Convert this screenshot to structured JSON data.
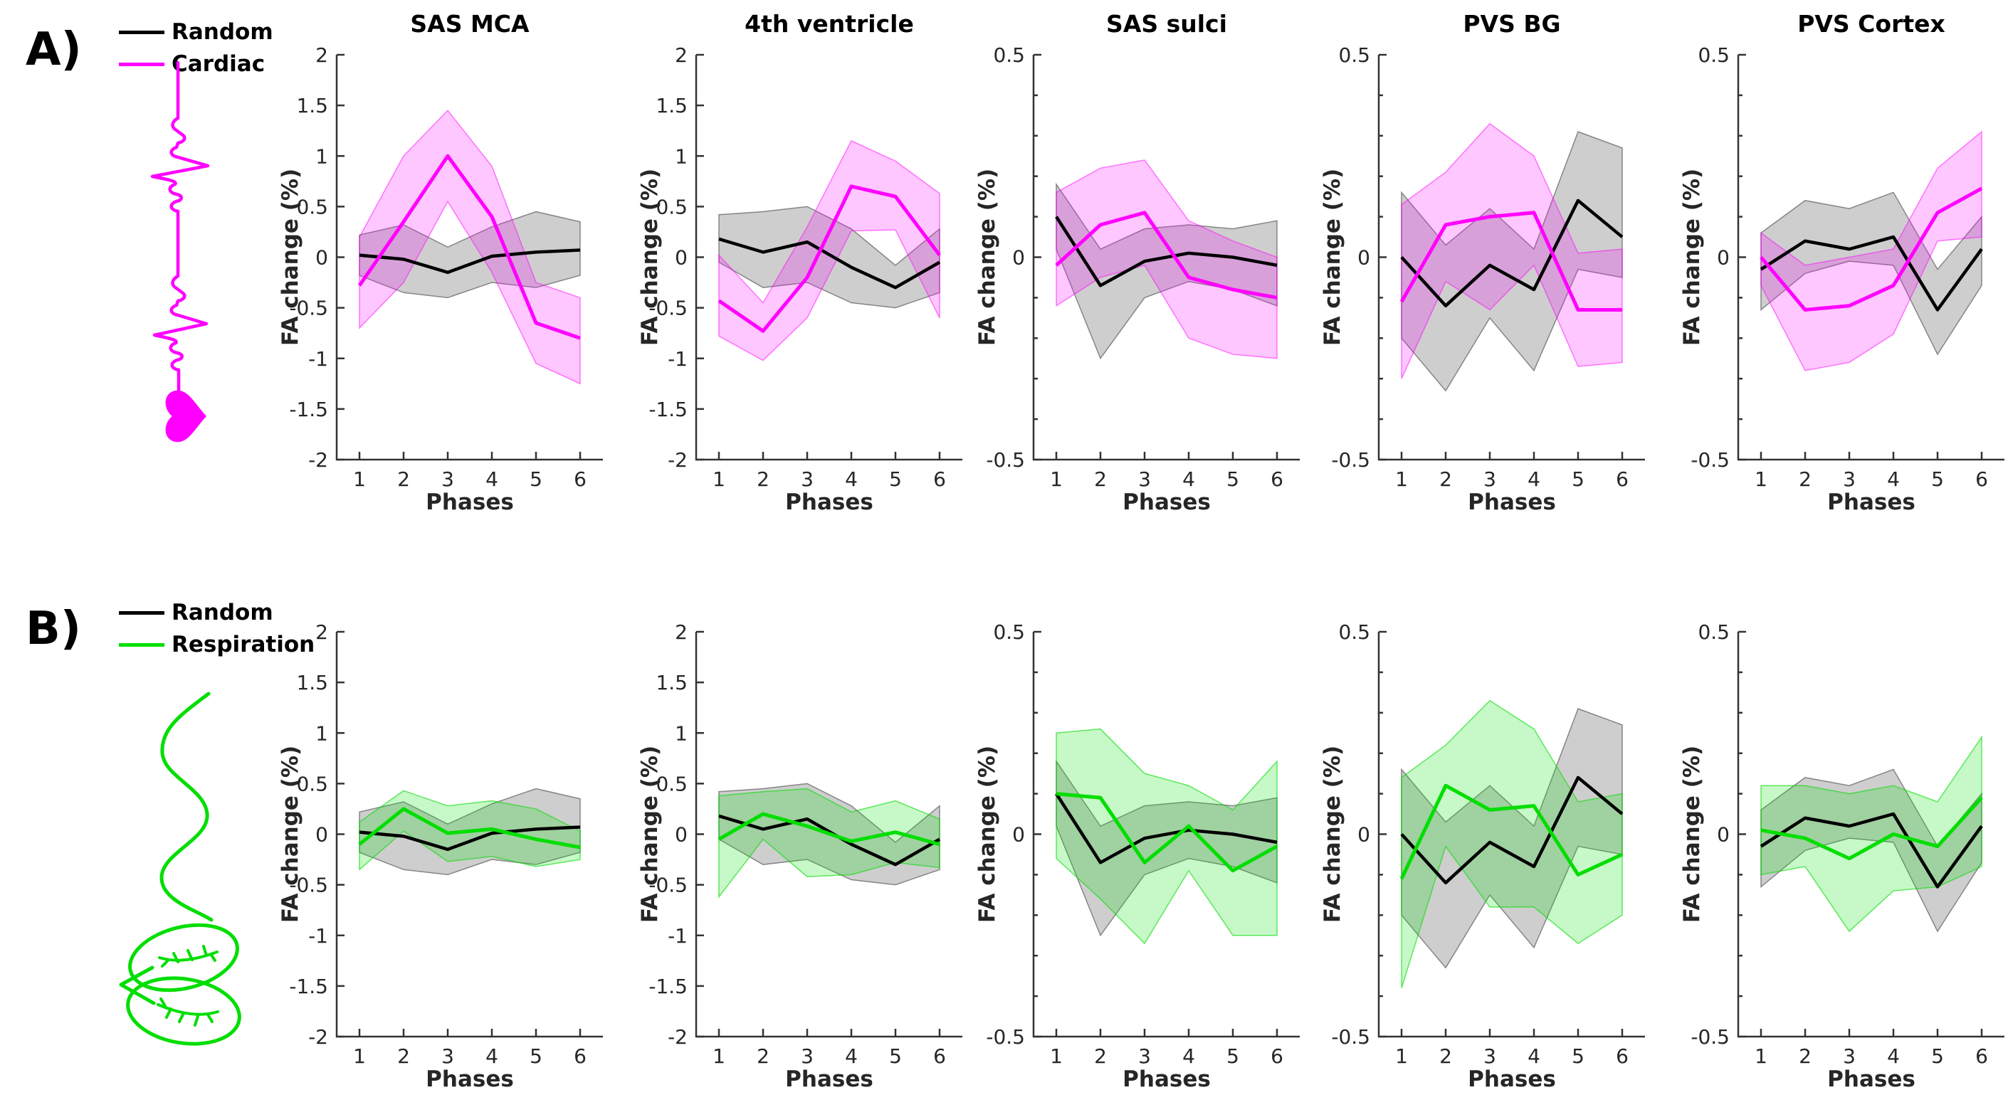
{
  "figure": {
    "panel_a_label": "A)",
    "panel_b_label": "B)",
    "xlabel": "Phases",
    "ylabel": "FA change (%)",
    "legend_a": [
      {
        "label": "Random",
        "color_key": "random"
      },
      {
        "label": "Cardiac",
        "color_key": "cardiac"
      }
    ],
    "legend_b": [
      {
        "label": "Random",
        "color_key": "random"
      },
      {
        "label": "Respiration",
        "color_key": "respiration"
      }
    ],
    "colors": {
      "random": "#000000",
      "cardiac": "#FF00FF",
      "respiration": "#00DE00",
      "random_band": "#7d7d7d",
      "axis": "#333333"
    }
  },
  "chart_data": [
    {
      "type": "line",
      "row": "a",
      "col": 0,
      "region": "sas-mca",
      "title": "SAS MCA",
      "x": [
        1,
        2,
        3,
        4,
        5,
        6
      ],
      "ylim": [
        -2,
        2
      ],
      "ytick_step": 0.5,
      "yminor_step": null,
      "series": [
        {
          "name": "Random",
          "color_key": "random",
          "values": [
            0.02,
            -0.02,
            -0.15,
            0.01,
            0.05,
            0.07
          ],
          "band_upper": [
            0.22,
            0.32,
            0.1,
            0.3,
            0.45,
            0.35
          ],
          "band_lower": [
            -0.18,
            -0.35,
            -0.4,
            -0.25,
            -0.3,
            -0.18
          ]
        },
        {
          "name": "Cardiac",
          "color_key": "cardiac",
          "values": [
            -0.28,
            0.35,
            1.0,
            0.4,
            -0.65,
            -0.8
          ],
          "band_upper": [
            0.2,
            1.0,
            1.45,
            0.9,
            -0.25,
            -0.4
          ],
          "band_lower": [
            -0.7,
            -0.25,
            0.55,
            -0.15,
            -1.05,
            -1.25
          ]
        }
      ]
    },
    {
      "type": "line",
      "row": "a",
      "col": 1,
      "region": "4th-ventricle",
      "title": "4th ventricle",
      "x": [
        1,
        2,
        3,
        4,
        5,
        6
      ],
      "ylim": [
        -2,
        2
      ],
      "ytick_step": 0.5,
      "yminor_step": null,
      "series": [
        {
          "name": "Random",
          "color_key": "random",
          "values": [
            0.18,
            0.05,
            0.15,
            -0.1,
            -0.3,
            -0.05
          ],
          "band_upper": [
            0.42,
            0.45,
            0.5,
            0.28,
            -0.08,
            0.28
          ],
          "band_lower": [
            -0.05,
            -0.3,
            -0.25,
            -0.45,
            -0.5,
            -0.35
          ]
        },
        {
          "name": "Cardiac",
          "color_key": "cardiac",
          "values": [
            -0.43,
            -0.73,
            -0.2,
            0.7,
            0.6,
            0.02
          ],
          "band_upper": [
            0.02,
            -0.45,
            0.3,
            1.15,
            0.95,
            0.63
          ],
          "band_lower": [
            -0.78,
            -1.02,
            -0.6,
            0.26,
            0.27,
            -0.6
          ]
        }
      ]
    },
    {
      "type": "line",
      "row": "a",
      "col": 2,
      "region": "sas-sulci",
      "title": "SAS sulci",
      "x": [
        1,
        2,
        3,
        4,
        5,
        6
      ],
      "ylim": [
        -0.5,
        0.5
      ],
      "ytick_step": 0.5,
      "yminor_step": 0.1,
      "series": [
        {
          "name": "Random",
          "color_key": "random",
          "values": [
            0.1,
            -0.07,
            -0.01,
            0.01,
            0.0,
            -0.02
          ],
          "band_upper": [
            0.18,
            0.02,
            0.07,
            0.08,
            0.07,
            0.09
          ],
          "band_lower": [
            0.02,
            -0.25,
            -0.1,
            -0.06,
            -0.08,
            -0.12
          ]
        },
        {
          "name": "Cardiac",
          "color_key": "cardiac",
          "values": [
            -0.02,
            0.08,
            0.11,
            -0.05,
            -0.08,
            -0.1
          ],
          "band_upper": [
            0.16,
            0.22,
            0.24,
            0.09,
            0.04,
            0.0
          ],
          "band_lower": [
            -0.12,
            -0.05,
            -0.02,
            -0.2,
            -0.24,
            -0.25
          ]
        }
      ]
    },
    {
      "type": "line",
      "row": "a",
      "col": 3,
      "region": "pvs-bg",
      "title": "PVS BG",
      "x": [
        1,
        2,
        3,
        4,
        5,
        6
      ],
      "ylim": [
        -0.5,
        0.5
      ],
      "ytick_step": 0.5,
      "yminor_step": 0.1,
      "series": [
        {
          "name": "Random",
          "color_key": "random",
          "values": [
            0.0,
            -0.12,
            -0.02,
            -0.08,
            0.14,
            0.05
          ],
          "band_upper": [
            0.16,
            0.03,
            0.12,
            0.02,
            0.31,
            0.27
          ],
          "band_lower": [
            -0.2,
            -0.33,
            -0.15,
            -0.28,
            -0.03,
            -0.05
          ]
        },
        {
          "name": "Cardiac",
          "color_key": "cardiac",
          "values": [
            -0.11,
            0.08,
            0.1,
            0.11,
            -0.13,
            -0.13
          ],
          "band_upper": [
            0.13,
            0.21,
            0.33,
            0.25,
            0.01,
            0.02
          ],
          "band_lower": [
            -0.3,
            -0.06,
            -0.13,
            -0.02,
            -0.27,
            -0.26
          ]
        }
      ]
    },
    {
      "type": "line",
      "row": "a",
      "col": 4,
      "region": "pvs-cortex",
      "title": "PVS Cortex",
      "x": [
        1,
        2,
        3,
        4,
        5,
        6
      ],
      "ylim": [
        -0.5,
        0.5
      ],
      "ytick_step": 0.5,
      "yminor_step": 0.1,
      "series": [
        {
          "name": "Random",
          "color_key": "random",
          "values": [
            -0.03,
            0.04,
            0.02,
            0.05,
            -0.13,
            0.02
          ],
          "band_upper": [
            0.06,
            0.14,
            0.12,
            0.16,
            -0.03,
            0.1
          ],
          "band_lower": [
            -0.13,
            -0.04,
            -0.01,
            -0.02,
            -0.24,
            -0.07
          ]
        },
        {
          "name": "Cardiac",
          "color_key": "cardiac",
          "values": [
            0.0,
            -0.13,
            -0.12,
            -0.07,
            0.11,
            0.17
          ],
          "band_upper": [
            0.06,
            -0.02,
            0.0,
            0.02,
            0.22,
            0.31
          ],
          "band_lower": [
            -0.07,
            -0.28,
            -0.26,
            -0.19,
            0.04,
            0.05
          ]
        }
      ]
    },
    {
      "type": "line",
      "row": "b",
      "col": 0,
      "region": "sas-mca",
      "title": "",
      "x": [
        1,
        2,
        3,
        4,
        5,
        6
      ],
      "ylim": [
        -2,
        2
      ],
      "ytick_step": 0.5,
      "yminor_step": null,
      "series": [
        {
          "name": "Random",
          "color_key": "random",
          "values": [
            0.02,
            -0.02,
            -0.15,
            0.01,
            0.05,
            0.07
          ],
          "band_upper": [
            0.22,
            0.32,
            0.1,
            0.3,
            0.45,
            0.35
          ],
          "band_lower": [
            -0.18,
            -0.35,
            -0.4,
            -0.25,
            -0.3,
            -0.18
          ]
        },
        {
          "name": "Respiration",
          "color_key": "respiration",
          "values": [
            -0.1,
            0.25,
            0.01,
            0.05,
            -0.05,
            -0.13
          ],
          "band_upper": [
            0.12,
            0.43,
            0.28,
            0.33,
            0.25,
            0.03
          ],
          "band_lower": [
            -0.35,
            0.03,
            -0.27,
            -0.22,
            -0.32,
            -0.25
          ]
        }
      ]
    },
    {
      "type": "line",
      "row": "b",
      "col": 1,
      "region": "4th-ventricle",
      "title": "",
      "x": [
        1,
        2,
        3,
        4,
        5,
        6
      ],
      "ylim": [
        -2,
        2
      ],
      "ytick_step": 0.5,
      "yminor_step": null,
      "series": [
        {
          "name": "Random",
          "color_key": "random",
          "values": [
            0.18,
            0.05,
            0.15,
            -0.1,
            -0.3,
            -0.05
          ],
          "band_upper": [
            0.42,
            0.45,
            0.5,
            0.28,
            -0.08,
            0.28
          ],
          "band_lower": [
            -0.05,
            -0.3,
            -0.25,
            -0.45,
            -0.5,
            -0.35
          ]
        },
        {
          "name": "Respiration",
          "color_key": "respiration",
          "values": [
            -0.05,
            0.2,
            0.08,
            -0.07,
            0.02,
            -0.1
          ],
          "band_upper": [
            0.38,
            0.42,
            0.45,
            0.22,
            0.33,
            0.15
          ],
          "band_lower": [
            -0.62,
            -0.05,
            -0.42,
            -0.4,
            -0.28,
            -0.33
          ]
        }
      ]
    },
    {
      "type": "line",
      "row": "b",
      "col": 2,
      "region": "sas-sulci",
      "title": "",
      "x": [
        1,
        2,
        3,
        4,
        5,
        6
      ],
      "ylim": [
        -0.5,
        0.5
      ],
      "ytick_step": 0.5,
      "yminor_step": 0.1,
      "series": [
        {
          "name": "Random",
          "color_key": "random",
          "values": [
            0.1,
            -0.07,
            -0.01,
            0.01,
            0.0,
            -0.02
          ],
          "band_upper": [
            0.18,
            0.02,
            0.07,
            0.08,
            0.07,
            0.09
          ],
          "band_lower": [
            0.02,
            -0.25,
            -0.1,
            -0.06,
            -0.08,
            -0.12
          ]
        },
        {
          "name": "Respiration",
          "color_key": "respiration",
          "values": [
            0.1,
            0.09,
            -0.07,
            0.02,
            -0.09,
            -0.03
          ],
          "band_upper": [
            0.25,
            0.26,
            0.15,
            0.12,
            0.06,
            0.18
          ],
          "band_lower": [
            -0.06,
            -0.16,
            -0.27,
            -0.09,
            -0.25,
            -0.25
          ]
        }
      ]
    },
    {
      "type": "line",
      "row": "b",
      "col": 3,
      "region": "pvs-bg",
      "title": "",
      "x": [
        1,
        2,
        3,
        4,
        5,
        6
      ],
      "ylim": [
        -0.5,
        0.5
      ],
      "ytick_step": 0.5,
      "yminor_step": 0.1,
      "series": [
        {
          "name": "Random",
          "color_key": "random",
          "values": [
            0.0,
            -0.12,
            -0.02,
            -0.08,
            0.14,
            0.05
          ],
          "band_upper": [
            0.16,
            0.03,
            0.12,
            0.02,
            0.31,
            0.27
          ],
          "band_lower": [
            -0.2,
            -0.33,
            -0.15,
            -0.28,
            -0.03,
            -0.05
          ]
        },
        {
          "name": "Respiration",
          "color_key": "respiration",
          "values": [
            -0.11,
            0.12,
            0.06,
            0.07,
            -0.1,
            -0.05
          ],
          "band_upper": [
            0.14,
            0.22,
            0.33,
            0.26,
            0.08,
            0.1
          ],
          "band_lower": [
            -0.38,
            -0.03,
            -0.18,
            -0.18,
            -0.27,
            -0.2
          ]
        }
      ]
    },
    {
      "type": "line",
      "row": "b",
      "col": 4,
      "region": "pvs-cortex",
      "title": "",
      "x": [
        1,
        2,
        3,
        4,
        5,
        6
      ],
      "ylim": [
        -0.5,
        0.5
      ],
      "ytick_step": 0.5,
      "yminor_step": 0.1,
      "series": [
        {
          "name": "Random",
          "color_key": "random",
          "values": [
            -0.03,
            0.04,
            0.02,
            0.05,
            -0.13,
            0.02
          ],
          "band_upper": [
            0.06,
            0.14,
            0.12,
            0.16,
            -0.03,
            0.1
          ],
          "band_lower": [
            -0.13,
            -0.04,
            -0.01,
            -0.02,
            -0.24,
            -0.07
          ]
        },
        {
          "name": "Respiration",
          "color_key": "respiration",
          "values": [
            0.01,
            -0.01,
            -0.06,
            0.0,
            -0.03,
            0.09
          ],
          "band_upper": [
            0.12,
            0.12,
            0.1,
            0.12,
            0.08,
            0.24
          ],
          "band_lower": [
            -0.1,
            -0.08,
            -0.24,
            -0.14,
            -0.13,
            -0.08
          ]
        }
      ]
    }
  ]
}
